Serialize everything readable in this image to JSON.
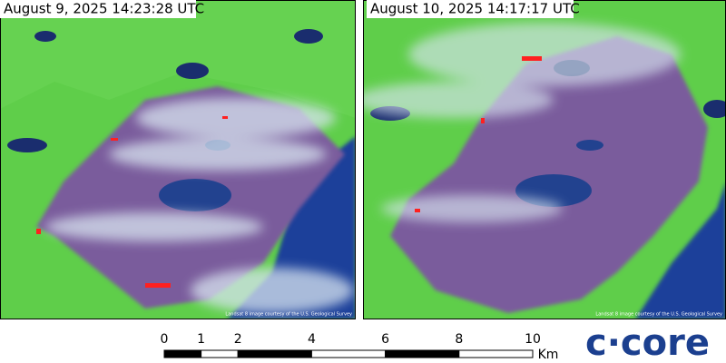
{
  "panels": [
    {
      "timestamp": "August 9, 2025 14:23:28 UTC",
      "credit": "Landsat 8 image courtesy of the U.S. Geological Survey"
    },
    {
      "timestamp": "August 10, 2025 14:17:17 UTC",
      "credit": "Landsat 8 image courtesy of the U.S. Geological Survey"
    }
  ],
  "scale_bar": {
    "ticks": [
      0,
      1,
      2,
      4,
      6,
      8,
      10
    ],
    "unit": "Km"
  },
  "logo": "c·core"
}
